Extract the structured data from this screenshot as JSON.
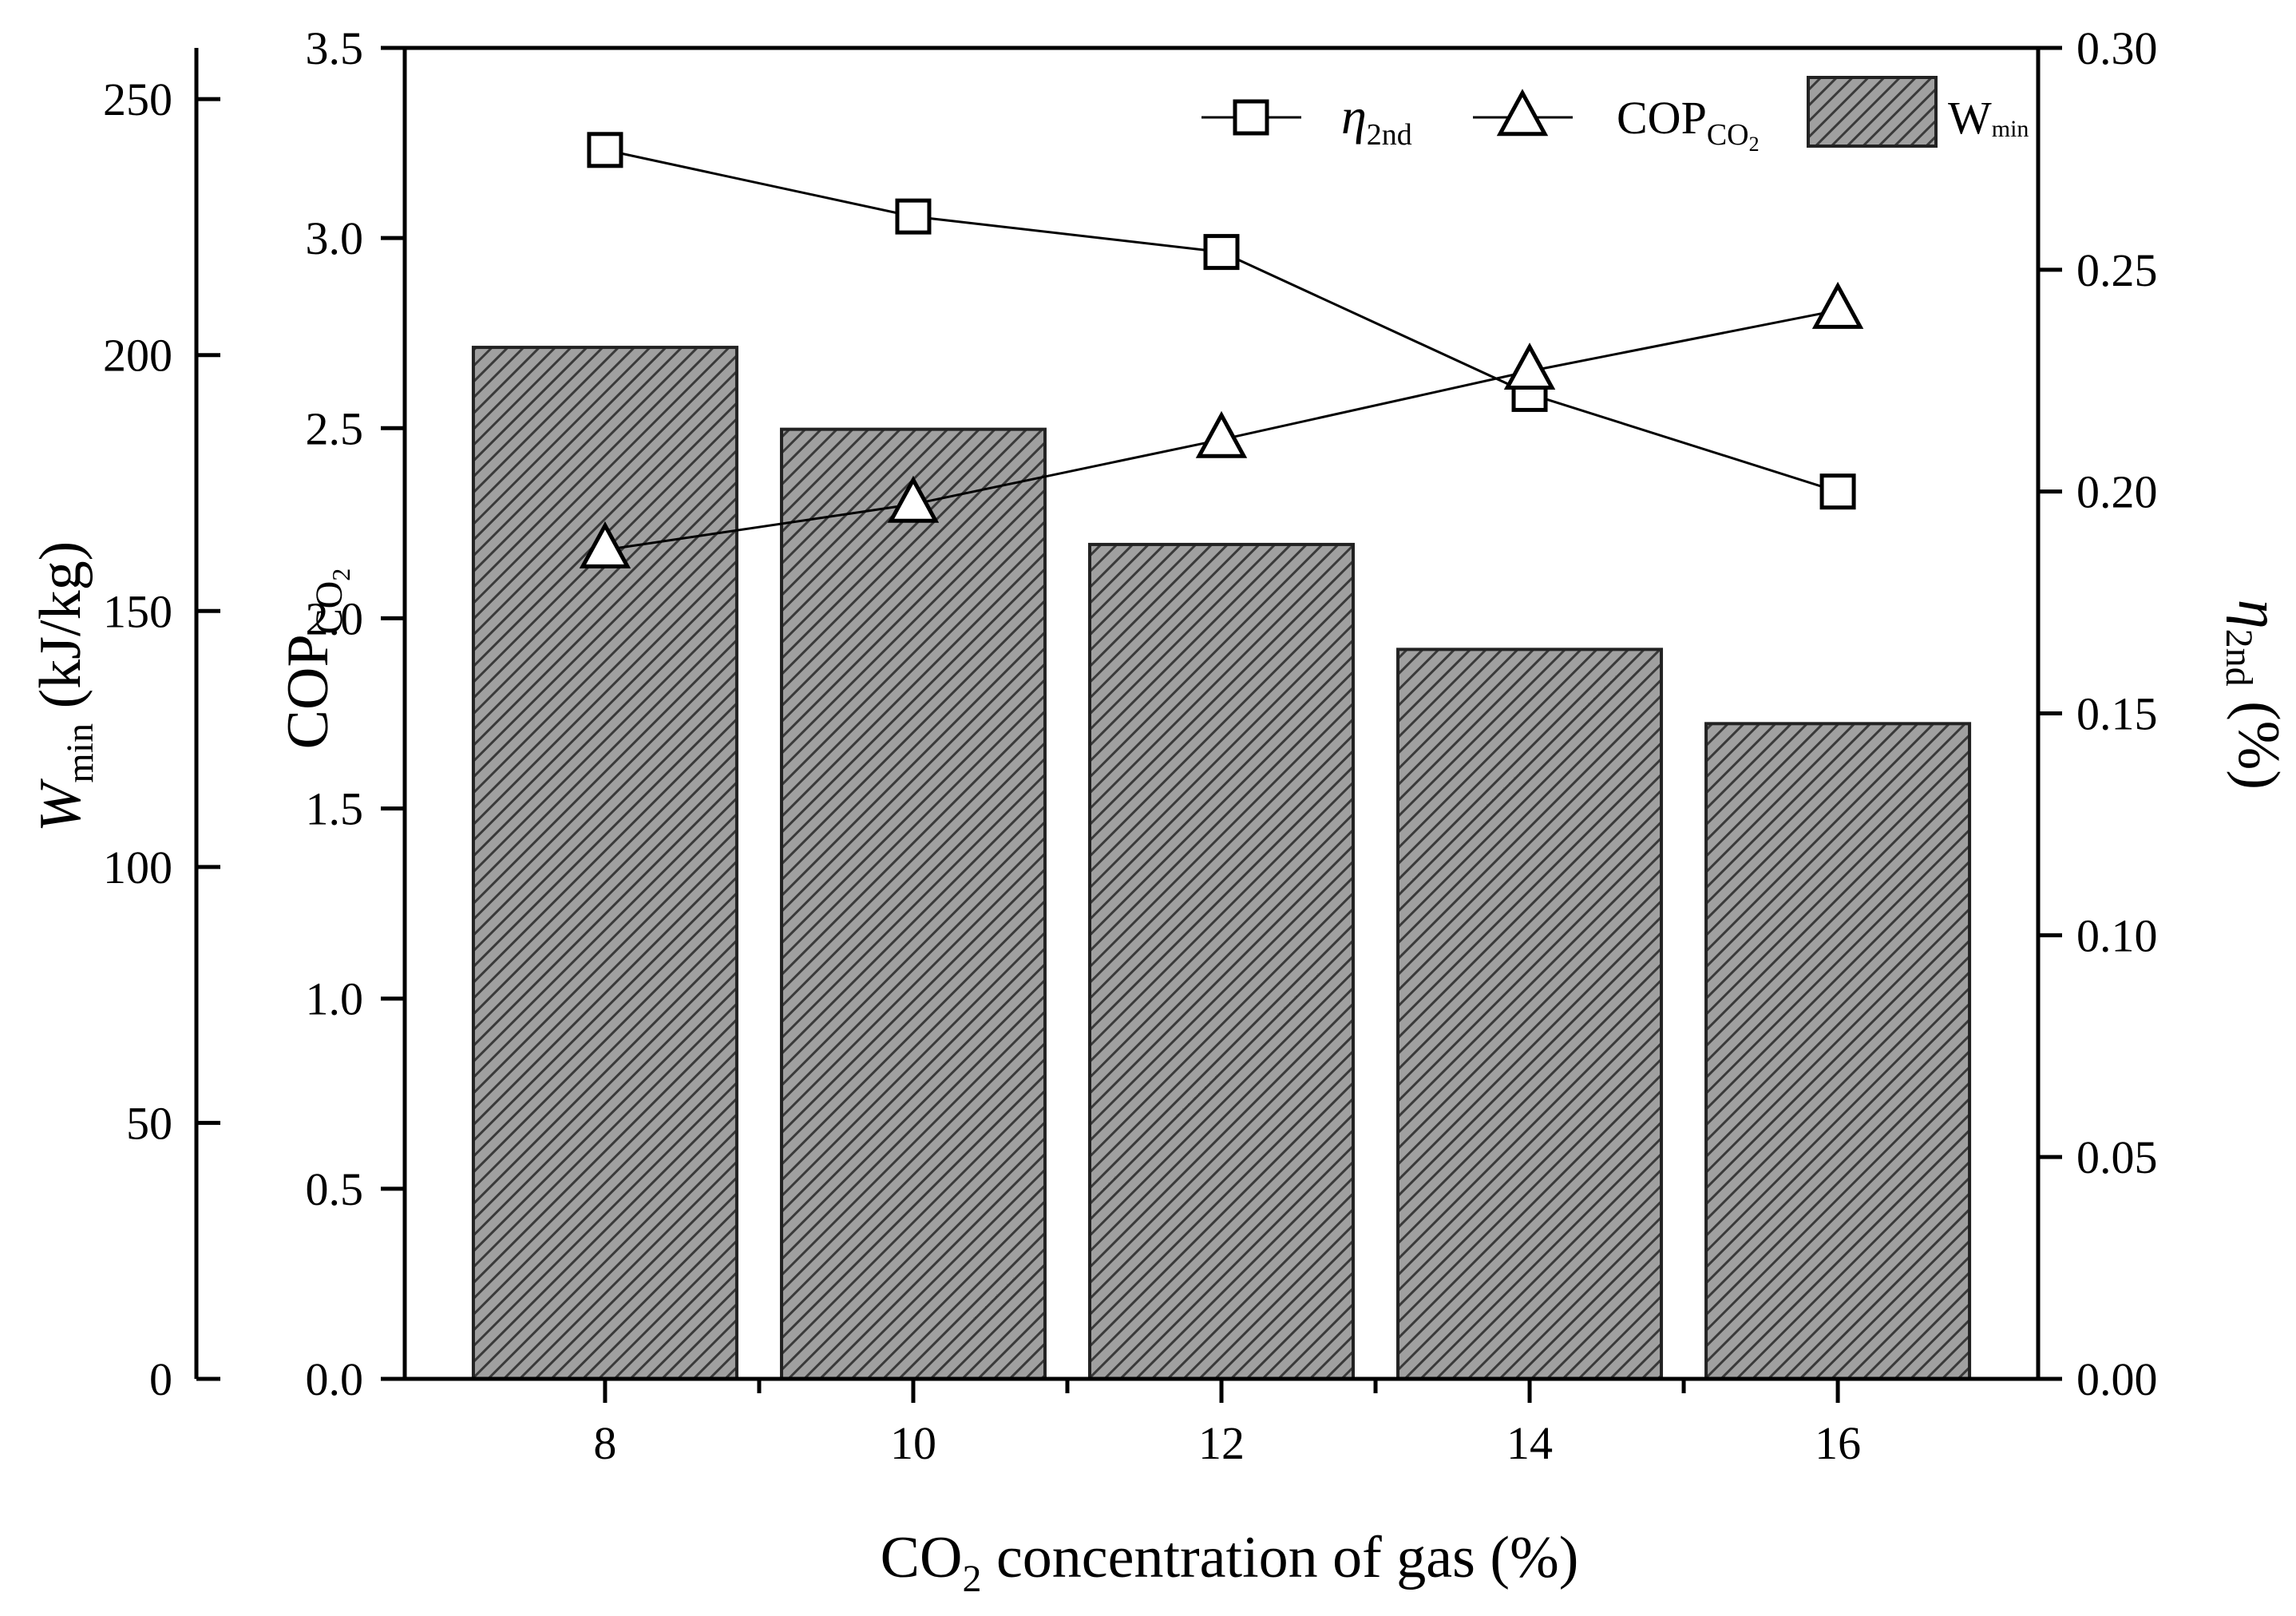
{
  "chart_data": {
    "type": "bar",
    "categories": [
      "8",
      "10",
      "12",
      "14",
      "16"
    ],
    "series": [
      {
        "name": "W_min",
        "kind": "bar",
        "axis": "W_min",
        "values": [
          201.5,
          185.5,
          163,
          142.5,
          128
        ],
        "fill": "#a0a0a0",
        "hatch": "diagonal"
      },
      {
        "name": "η_2nd",
        "kind": "line",
        "marker": "square",
        "axis": "eta",
        "values": [
          0.277,
          0.262,
          0.254,
          0.222,
          0.2
        ]
      },
      {
        "name": "COP_CO2",
        "kind": "line",
        "marker": "triangle",
        "axis": "cop",
        "values": [
          2.18,
          2.3,
          2.47,
          2.65,
          2.81
        ]
      }
    ],
    "axes": {
      "W_min": {
        "label_main": "W",
        "label_sub": "min",
        "label_unit": " (kJ/kg)",
        "ylim": [
          0,
          260
        ],
        "ticks": [
          "0",
          "50",
          "100",
          "150",
          "200",
          "250"
        ]
      },
      "cop": {
        "label_main": "COP",
        "label_sub": "CO",
        "label_subsub": "2",
        "ylim": [
          0,
          3.5
        ],
        "ticks": [
          "0.0",
          "0.5",
          "1.0",
          "1.5",
          "2.0",
          "2.5",
          "3.0",
          "3.5"
        ]
      },
      "eta": {
        "label_main": "η",
        "label_sub": "2nd",
        "label_unit": " (%)",
        "ylim": [
          0,
          0.3
        ],
        "ticks": [
          "0.00",
          "0.05",
          "0.10",
          "0.15",
          "0.20",
          "0.25",
          "0.30"
        ]
      },
      "x": {
        "label_pre": "CO",
        "label_sub": "2",
        "label_post": " concentration of gas (%)"
      }
    },
    "legend": {
      "position": "top-right",
      "items": [
        {
          "marker": "square",
          "main": "η",
          "sub": "2nd"
        },
        {
          "marker": "triangle",
          "main": "COP",
          "sub": "CO",
          "subsub": "2"
        },
        {
          "marker": "bar",
          "main": "W",
          "sub": "min"
        }
      ]
    },
    "colors": {
      "bar_fill": "#a0a0a0",
      "hatch": "#3a3a3a",
      "line": "#000000"
    }
  }
}
